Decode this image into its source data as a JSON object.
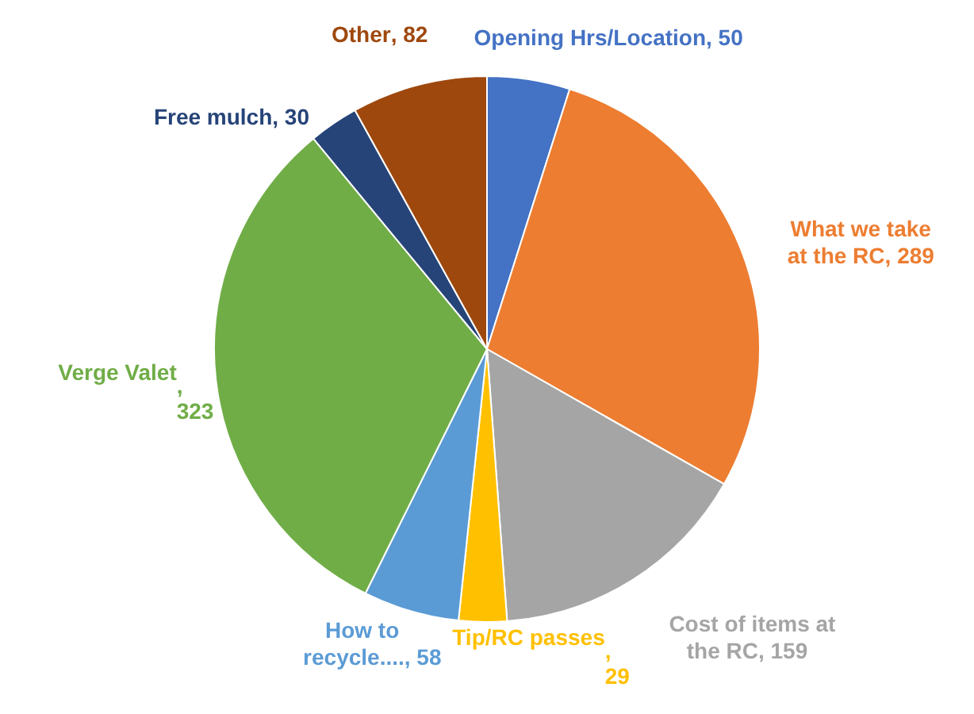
{
  "chart_data": {
    "type": "pie",
    "categories": [
      "Opening Hrs/Location",
      "What we take at the RC",
      "Cost of items at the RC",
      "Tip/RC passes",
      "How to recycle....",
      "Verge Valet",
      "Free mulch",
      "Other"
    ],
    "values": [
      50,
      289,
      159,
      29,
      58,
      323,
      30,
      82
    ],
    "colors": [
      "#4472c4",
      "#ed7d31",
      "#a5a5a5",
      "#ffc000",
      "#5b9bd5",
      "#70ad47",
      "#264478",
      "#9e480e"
    ],
    "value_labels": [
      ", 50",
      ", 289",
      ", 159",
      ",\n29",
      ", 58",
      ",\n323",
      ", 30",
      ", 82"
    ]
  }
}
